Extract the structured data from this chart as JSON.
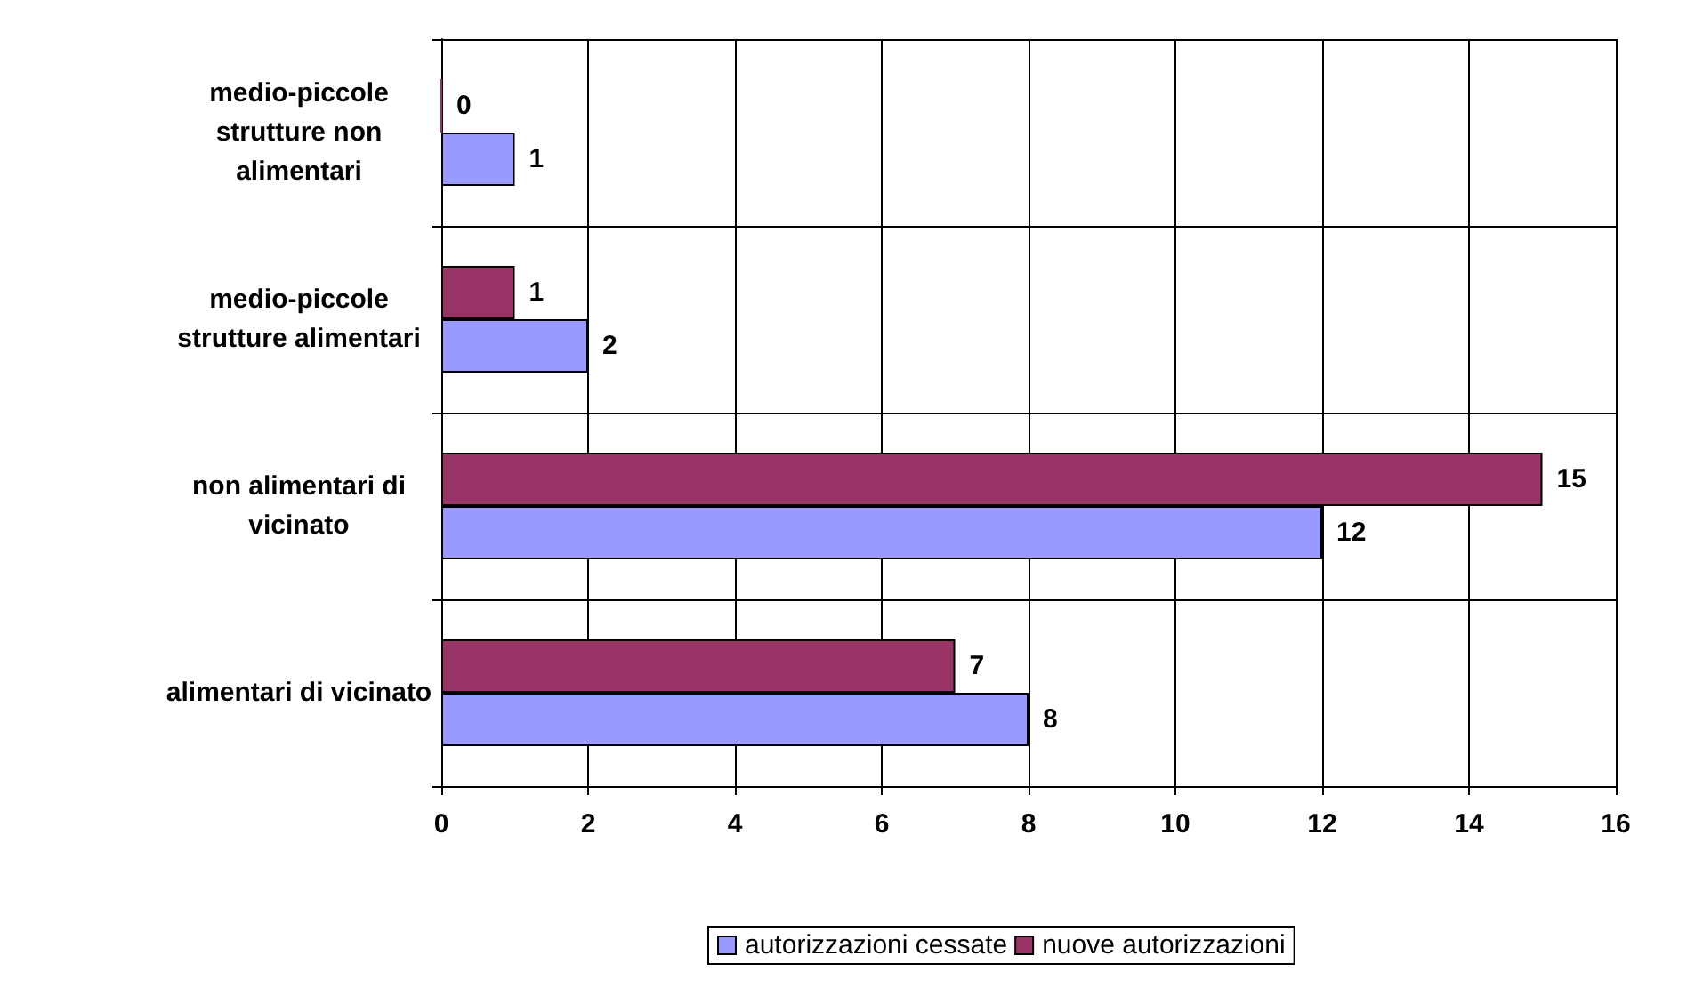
{
  "chart_data": {
    "type": "bar",
    "orientation": "horizontal",
    "categories": [
      "medio-piccole\nstrutture non\nalimentari",
      "medio-piccole\nstrutture alimentari",
      "non alimentari di\nvicinato",
      "alimentari di vicinato"
    ],
    "series": [
      {
        "name": "nuove autorizzazioni",
        "color": "#993366",
        "values": [
          0,
          1,
          15,
          7
        ]
      },
      {
        "name": "autorizzazioni cessate",
        "color": "#9999ff",
        "values": [
          1,
          2,
          12,
          8
        ]
      }
    ],
    "xlim": [
      0,
      16
    ],
    "xticks": [
      0,
      2,
      4,
      6,
      8,
      10,
      12,
      14,
      16
    ],
    "grid": true,
    "legend": "bottom",
    "data_labels": true
  }
}
